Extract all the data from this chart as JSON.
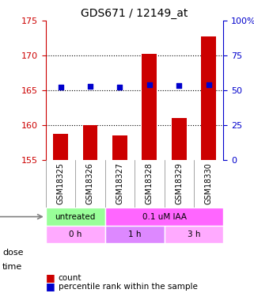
{
  "title": "GDS671 / 12149_at",
  "samples": [
    "GSM18325",
    "GSM18326",
    "GSM18327",
    "GSM18328",
    "GSM18329",
    "GSM18330"
  ],
  "bar_values": [
    158.8,
    160.0,
    158.5,
    170.2,
    161.0,
    172.8
  ],
  "dot_values": [
    165.5,
    165.6,
    165.5,
    165.8,
    165.7,
    165.8
  ],
  "bar_color": "#cc0000",
  "dot_color": "#0000cc",
  "ylim_left": [
    155,
    175
  ],
  "yticks_left": [
    155,
    160,
    165,
    170,
    175
  ],
  "ylim_right": [
    0,
    100
  ],
  "yticks_right": [
    0,
    25,
    50,
    75,
    100
  ],
  "yticklabels_right": [
    "0",
    "25",
    "50",
    "75",
    "100%"
  ],
  "dose_labels": [
    {
      "text": "untreated",
      "spans": [
        0,
        2
      ],
      "color": "#99ff99"
    },
    {
      "text": "0.1 uM IAA",
      "spans": [
        2,
        6
      ],
      "color": "#ff66ff"
    }
  ],
  "time_labels": [
    {
      "text": "0 h",
      "spans": [
        0,
        2
      ],
      "color": "#ff99ff"
    },
    {
      "text": "1 h",
      "spans": [
        2,
        4
      ],
      "color": "#cc66ff"
    },
    {
      "text": "3 h",
      "spans": [
        4,
        6
      ],
      "color": "#ff99ff"
    }
  ],
  "dose_label_color": "#ff66ff",
  "time_label_color": "#cc66ff",
  "legend_count_color": "#cc0000",
  "legend_dot_color": "#0000cc",
  "bar_bottom": 155
}
